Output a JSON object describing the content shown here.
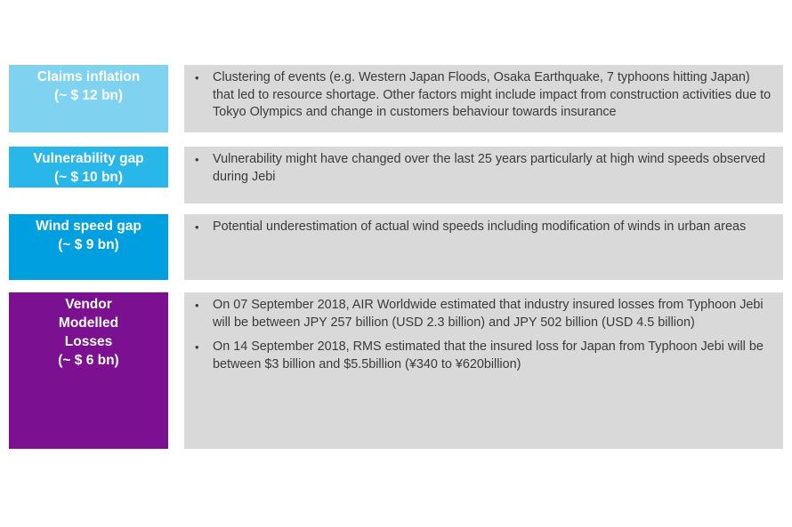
{
  "rows": [
    {
      "label": [
        "Claims inflation",
        "(~ $ 12 bn)"
      ],
      "color": "#7fd3f0",
      "bullets": [
        "Clustering of events (e.g. Western Japan Floods, Osaka Earthquake, 7 typhoons hitting Japan) that led to resource shortage. Other factors might include impact from construction activities due to Tokyo Olympics and change in customers behaviour towards insurance"
      ]
    },
    {
      "label": [
        "Vulnerability gap",
        "(~ $ 10 bn)"
      ],
      "color": "#29b7ea",
      "bullets": [
        "Vulnerability might have changed over the last 25 years particularly at high wind speeds observed during Jebi"
      ]
    },
    {
      "label": [
        "Wind speed gap",
        "(~ $ 9 bn)"
      ],
      "color": "#009fdf",
      "bullets": [
        "Potential underestimation of actual wind speeds including modification of winds in urban areas"
      ]
    },
    {
      "label": [
        "Vendor",
        "Modelled",
        "Losses",
        "(~ $ 6 bn)"
      ],
      "color": "#7b1190",
      "bullets": [
        "On 07 September 2018, AIR Worldwide estimated that industry insured losses from Typhoon Jebi will be between JPY 257 billion (USD 2.3 billion) and JPY 502 billion (USD 4.5 billion)",
        "On 14 September 2018, RMS estimated that the insured loss for Japan from Typhoon Jebi will be between $3 billion and $5.5billion (¥340 to ¥620billion)"
      ]
    }
  ]
}
